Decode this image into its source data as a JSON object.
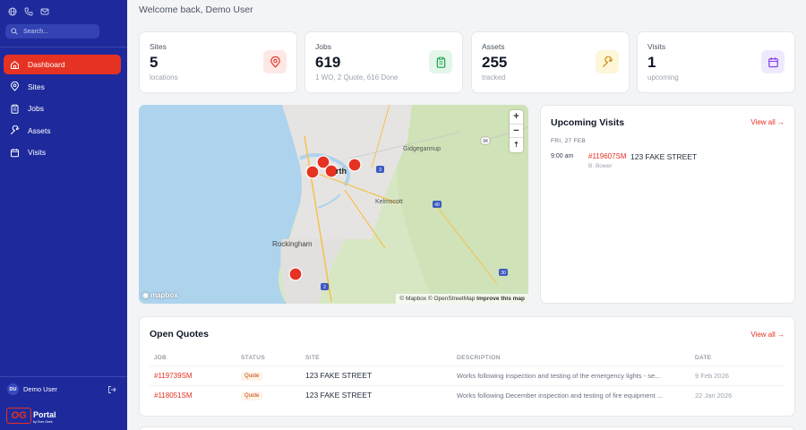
{
  "sidebar": {
    "search_placeholder": "Search...",
    "nav": [
      {
        "label": "Dashboard",
        "icon": "home-icon",
        "active": true
      },
      {
        "label": "Sites",
        "icon": "map-pin-icon"
      },
      {
        "label": "Jobs",
        "icon": "clipboard-icon"
      },
      {
        "label": "Assets",
        "icon": "wrench-icon"
      },
      {
        "label": "Visits",
        "icon": "calendar-icon"
      }
    ],
    "user": {
      "initials": "DU",
      "name": "Demo User"
    },
    "logo": {
      "mark": "OG",
      "name": "Portal",
      "tagline": "by Over Geek"
    }
  },
  "welcome": "Welcome back, Demo User",
  "stats": [
    {
      "label": "Sites",
      "value": "5",
      "sub": "locations",
      "icon": "map-pin-icon",
      "color": "#e53222",
      "bg": "#fde8e6"
    },
    {
      "label": "Jobs",
      "value": "619",
      "sub": "1 WO, 2 Quote, 616 Done",
      "icon": "clipboard-icon",
      "color": "#16a34a",
      "bg": "#e3f6e9"
    },
    {
      "label": "Assets",
      "value": "255",
      "sub": "tracked",
      "icon": "wrench-icon",
      "color": "#ca8a04",
      "bg": "#fdf6d8"
    },
    {
      "label": "Visits",
      "value": "1",
      "sub": "upcoming",
      "icon": "calendar-icon",
      "color": "#7c3aed",
      "bg": "#efe9fd"
    }
  ],
  "map": {
    "labels": [
      "Gidgegannup",
      "Kelmscott",
      "Rockingham",
      "rth"
    ],
    "road_shields": [
      "94",
      "3",
      "40",
      "2",
      "30"
    ],
    "logo": "mapbox",
    "attribution_prefix": "© Mapbox © OpenStreetMap",
    "attribution_link": "Improve this map"
  },
  "upcoming_visits": {
    "title": "Upcoming Visits",
    "view_all": "View all →",
    "date": "FRI, 27 FEB",
    "items": [
      {
        "time": "9:00 am",
        "job": "#119607SM",
        "site": "123 FAKE STREET",
        "person": "B. Bower"
      }
    ]
  },
  "open_quotes": {
    "title": "Open Quotes",
    "view_all": "View all →",
    "columns": [
      "JOB",
      "STATUS",
      "SITE",
      "DESCRIPTION",
      "DATE"
    ],
    "rows": [
      {
        "job": "#119739SM",
        "status": "Quote",
        "site": "123 FAKE STREET",
        "description": "Works following inspection and testing of the emergency lights - se...",
        "date": "9 Feb 2026"
      },
      {
        "job": "#118051SM",
        "status": "Quote",
        "site": "123 FAKE STREET",
        "description": "Works following December inspection and testing of fire equipment ...",
        "date": "22 Jan 2026"
      }
    ]
  }
}
